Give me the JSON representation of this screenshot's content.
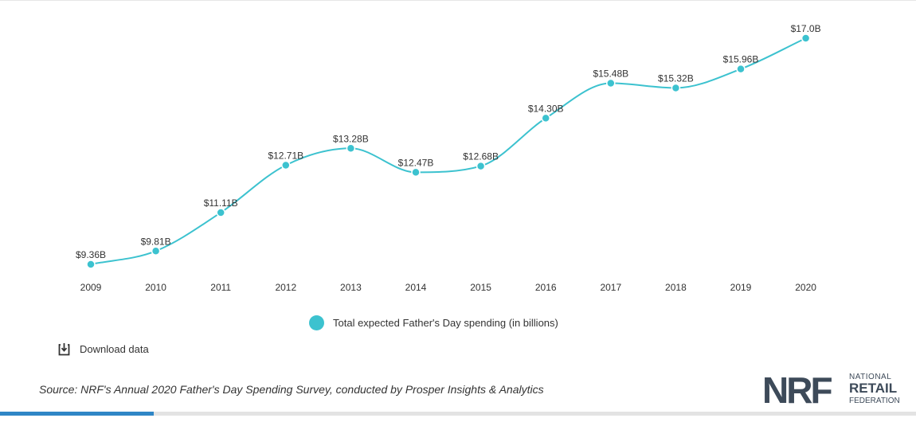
{
  "chart_data": {
    "type": "line",
    "x": [
      "2009",
      "2010",
      "2011",
      "2012",
      "2013",
      "2014",
      "2015",
      "2016",
      "2017",
      "2018",
      "2019",
      "2020"
    ],
    "series": [
      {
        "name": "Total expected Father's Day spending (in billions)",
        "values": [
          9.36,
          9.81,
          11.11,
          12.71,
          13.28,
          12.47,
          12.68,
          14.3,
          15.48,
          15.32,
          15.96,
          17.0
        ],
        "labels": [
          "$9.36B",
          "$9.81B",
          "$11.11B",
          "$12.71B",
          "$13.28B",
          "$12.47B",
          "$12.68B",
          "$14.30B",
          "$15.48B",
          "$15.32B",
          "$15.96B",
          "$17.0B"
        ],
        "color": "#3cc2cf"
      }
    ],
    "title": "",
    "xlabel": "",
    "ylabel": "",
    "smooth": true,
    "grid": false,
    "legend_position": "bottom"
  },
  "legend": {
    "label": "Total expected Father's Day spending (in billions)"
  },
  "download": {
    "label": "Download data",
    "icon": "download-icon"
  },
  "source": {
    "text": "Source: NRF's Annual 2020 Father's Day Spending Survey, conducted by Prosper Insights & Analytics"
  },
  "logo": {
    "mark": "NRF",
    "line1": "NATIONAL",
    "line2": "RETAIL",
    "line3": "FEDERATION",
    "mark_color": "#3d4a59"
  },
  "progress": {
    "fraction": 0.168,
    "color": "#2f86c6"
  }
}
